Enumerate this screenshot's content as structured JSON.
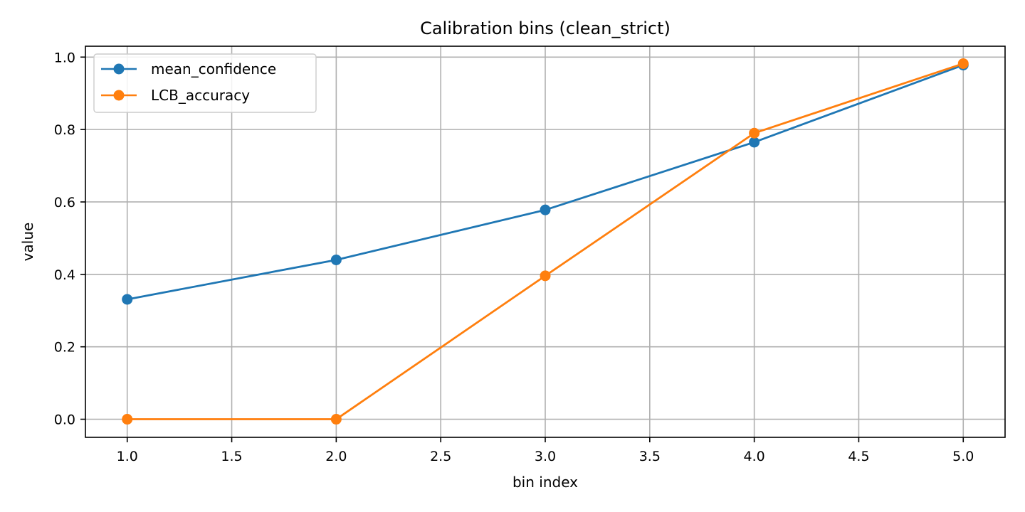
{
  "chart_data": {
    "type": "line",
    "title": "Calibration bins (clean_strict)",
    "xlabel": "bin index",
    "ylabel": "value",
    "x": [
      1,
      2,
      3,
      4,
      5
    ],
    "xlim": [
      0.8,
      5.2
    ],
    "ylim": [
      -0.05,
      1.03
    ],
    "xticks": [
      1.0,
      1.5,
      2.0,
      2.5,
      3.0,
      3.5,
      4.0,
      4.5,
      5.0
    ],
    "yticks": [
      0.0,
      0.2,
      0.4,
      0.6,
      0.8,
      1.0
    ],
    "grid": true,
    "legend_position": "top-left",
    "series": [
      {
        "name": "mean_confidence",
        "color": "#1f77b4",
        "values": [
          0.331,
          0.44,
          0.578,
          0.765,
          0.978
        ]
      },
      {
        "name": "LCB_accuracy",
        "color": "#ff7f0e",
        "values": [
          0.0,
          0.0,
          0.396,
          0.79,
          0.982
        ]
      }
    ]
  }
}
